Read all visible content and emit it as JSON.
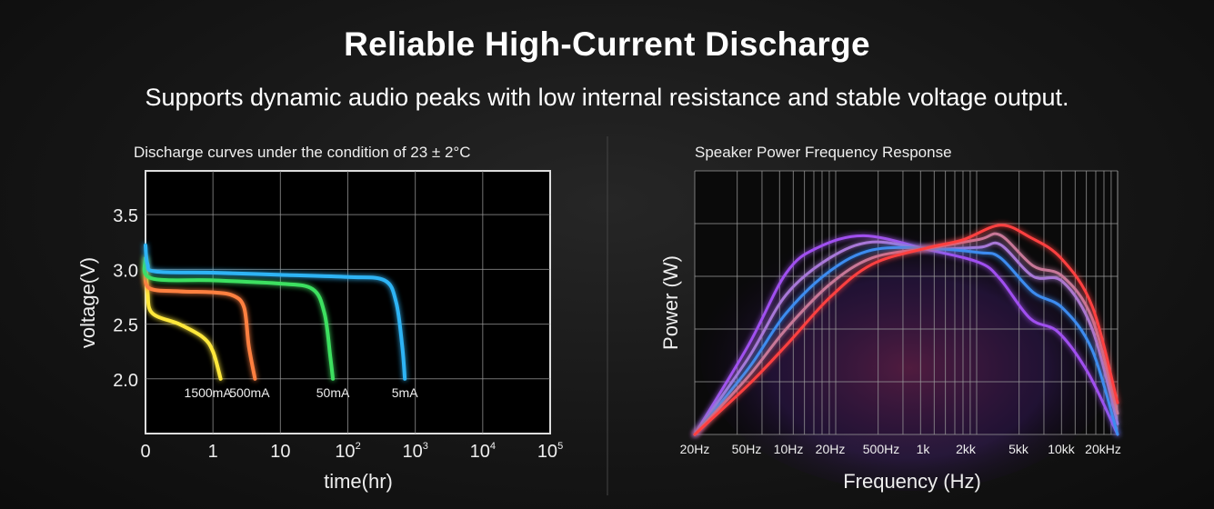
{
  "header": {
    "title": "Reliable High-Current Discharge",
    "subtitle": "Supports dynamic audio peaks with low internal resistance and stable voltage output."
  },
  "chart_data": [
    {
      "type": "line",
      "title": "Discharge curves under the condition of 23 ± 2°C",
      "xlabel": "time(hr)",
      "ylabel": "voltage(V)",
      "x_scale": "log (0, 1, 10, 10^2 ... 10^5 evenly spaced)",
      "x_ticks": [
        "0",
        "1",
        "10",
        "10",
        "10",
        "10",
        "10"
      ],
      "x_tick_sup": [
        "",
        "",
        "",
        "2",
        "3",
        "4",
        "5"
      ],
      "y_ticks": [
        "2.0",
        "2.5",
        "3.0",
        "3.5"
      ],
      "y_tick_values": [
        2.0,
        2.5,
        3.0,
        3.5
      ],
      "ylim": [
        1.5,
        3.9
      ],
      "xlim": [
        0,
        100000
      ],
      "grid": true,
      "series": [
        {
          "name": "1500mA",
          "color": "#ffe83a",
          "points": [
            [
              0,
              3.1
            ],
            [
              0.03,
              2.8
            ],
            [
              0.1,
              2.6
            ],
            [
              0.5,
              2.5
            ],
            [
              0.85,
              2.38
            ],
            [
              1.0,
              2.25
            ],
            [
              1.3,
              2.0
            ]
          ]
        },
        {
          "name": "500mA",
          "color": "#ff8040",
          "points": [
            [
              0,
              3.0
            ],
            [
              0.05,
              2.83
            ],
            [
              0.5,
              2.8
            ],
            [
              1,
              2.79
            ],
            [
              2,
              2.76
            ],
            [
              2.9,
              2.65
            ],
            [
              3.4,
              2.3
            ],
            [
              4.2,
              2.0
            ]
          ]
        },
        {
          "name": "50mA",
          "color": "#3ee060",
          "points": [
            [
              0,
              3.1
            ],
            [
              0.08,
              2.92
            ],
            [
              1,
              2.9
            ],
            [
              10,
              2.87
            ],
            [
              30,
              2.82
            ],
            [
              45,
              2.6
            ],
            [
              55,
              2.2
            ],
            [
              60,
              2.0
            ]
          ]
        },
        {
          "name": "5mA",
          "color": "#2eb4f5",
          "points": [
            [
              0,
              3.22
            ],
            [
              0.03,
              3.05
            ],
            [
              0.15,
              2.98
            ],
            [
              1,
              2.97
            ],
            [
              10,
              2.95
            ],
            [
              100,
              2.93
            ],
            [
              350,
              2.9
            ],
            [
              520,
              2.7
            ],
            [
              640,
              2.3
            ],
            [
              700,
              2.0
            ]
          ]
        }
      ]
    },
    {
      "type": "line",
      "title": "Speaker Power Frequency Response",
      "xlabel": "Frequency (Hz)",
      "ylabel": "Power (W)",
      "x_scale": "log",
      "xlim": [
        20,
        20000
      ],
      "ylim": [
        0,
        5
      ],
      "x_ticks": [
        "20Hz",
        "50Hz",
        "10Hz",
        "20Hz",
        "500Hz",
        "1k",
        "2kk",
        "5kk",
        "10kk",
        "20kHz"
      ],
      "grid": true,
      "series": [
        {
          "color": "#a050f0",
          "points": [
            [
              20,
              0
            ],
            [
              48,
              1.69
            ],
            [
              89,
              3.06
            ],
            [
              148,
              3.54
            ],
            [
              317,
              3.77
            ],
            [
              894,
              3.51
            ],
            [
              2090,
              3.26
            ],
            [
              2950,
              2.94
            ],
            [
              4790,
              2.2
            ],
            [
              7590,
              1.94
            ],
            [
              12340,
              1.17
            ],
            [
              20000,
              0
            ]
          ]
        },
        {
          "color": "#a878d8",
          "points": [
            [
              20,
              0
            ],
            [
              48,
              1.45
            ],
            [
              89,
              2.65
            ],
            [
              182,
              3.35
            ],
            [
              363,
              3.65
            ],
            [
              894,
              3.52
            ],
            [
              2090,
              3.55
            ],
            [
              2950,
              3.6
            ],
            [
              5020,
              3.0
            ],
            [
              8130,
              2.9
            ],
            [
              13210,
              2.0
            ],
            [
              20000,
              0.2
            ]
          ]
        },
        {
          "color": "#3d8cf0",
          "points": [
            [
              20,
              0
            ],
            [
              48,
              1.25
            ],
            [
              89,
              2.3
            ],
            [
              182,
              3.1
            ],
            [
              363,
              3.5
            ],
            [
              894,
              3.53
            ],
            [
              2090,
              3.45
            ],
            [
              2950,
              3.35
            ],
            [
              5020,
              2.7
            ],
            [
              8130,
              2.4
            ],
            [
              13210,
              1.6
            ],
            [
              20000,
              0
            ]
          ]
        },
        {
          "color": "#c87898",
          "points": [
            [
              20,
              0
            ],
            [
              48,
              1.1
            ],
            [
              89,
              2.0
            ],
            [
              182,
              2.85
            ],
            [
              363,
              3.35
            ],
            [
              894,
              3.53
            ],
            [
              2090,
              3.7
            ],
            [
              2950,
              3.78
            ],
            [
              5020,
              3.2
            ],
            [
              8130,
              3.0
            ],
            [
              13210,
              2.2
            ],
            [
              20000,
              0.4
            ]
          ]
        },
        {
          "color": "#ff4040",
          "points": [
            [
              20,
              0
            ],
            [
              48,
              0.94
            ],
            [
              89,
              1.69
            ],
            [
              182,
              2.6
            ],
            [
              363,
              3.23
            ],
            [
              894,
              3.54
            ],
            [
              1590,
              3.69
            ],
            [
              2950,
              3.97
            ],
            [
              4790,
              3.74
            ],
            [
              7960,
              3.34
            ],
            [
              13210,
              2.43
            ],
            [
              20000,
              0.6
            ]
          ]
        }
      ]
    }
  ]
}
